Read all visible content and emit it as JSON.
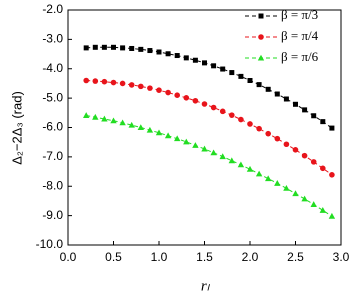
{
  "chart_data": {
    "type": "line",
    "x_label": "rₗ",
    "y_label": "Δ₂−2Δ₃ (rad)",
    "x": [
      0.2,
      0.3,
      0.4,
      0.5,
      0.6,
      0.7,
      0.8,
      0.9,
      1.0,
      1.1,
      1.2,
      1.3,
      1.4,
      1.5,
      1.6,
      1.7,
      1.8,
      1.9,
      2.0,
      2.1,
      2.2,
      2.3,
      2.4,
      2.5,
      2.6,
      2.7,
      2.8,
      2.9
    ],
    "series": [
      {
        "name": "β = π/3",
        "color": "#000000",
        "marker": "square",
        "values": [
          -3.29,
          -3.27,
          -3.27,
          -3.27,
          -3.29,
          -3.31,
          -3.34,
          -3.38,
          -3.43,
          -3.49,
          -3.55,
          -3.63,
          -3.71,
          -3.8,
          -3.9,
          -4.01,
          -4.13,
          -4.26,
          -4.4,
          -4.54,
          -4.7,
          -4.86,
          -5.03,
          -5.21,
          -5.4,
          -5.6,
          -5.8,
          -6.02
        ]
      },
      {
        "name": "β = π/4",
        "color": "#e8141b",
        "marker": "circle",
        "values": [
          -4.4,
          -4.42,
          -4.44,
          -4.47,
          -4.5,
          -4.55,
          -4.6,
          -4.66,
          -4.73,
          -4.81,
          -4.9,
          -4.99,
          -5.09,
          -5.2,
          -5.32,
          -5.45,
          -5.58,
          -5.73,
          -5.88,
          -6.04,
          -6.21,
          -6.38,
          -6.57,
          -6.76,
          -6.96,
          -7.17,
          -7.39,
          -7.61
        ]
      },
      {
        "name": "β = π/6",
        "color": "#22dd22",
        "marker": "triangle",
        "values": [
          -5.59,
          -5.65,
          -5.71,
          -5.77,
          -5.84,
          -5.92,
          -6.0,
          -6.09,
          -6.18,
          -6.28,
          -6.38,
          -6.49,
          -6.61,
          -6.73,
          -6.86,
          -6.99,
          -7.13,
          -7.27,
          -7.42,
          -7.58,
          -7.74,
          -7.9,
          -8.07,
          -8.25,
          -8.43,
          -8.62,
          -8.82,
          -9.02
        ]
      }
    ],
    "xlim": [
      0,
      3
    ],
    "xticks": [
      {
        "value": 0,
        "label": "0.0"
      },
      {
        "value": 0.5,
        "label": "0.5"
      },
      {
        "value": 1,
        "label": "1.0"
      },
      {
        "value": 1.5,
        "label": "1.5"
      },
      {
        "value": 2,
        "label": "2.0"
      },
      {
        "value": 2.5,
        "label": "2.5"
      },
      {
        "value": 3,
        "label": "3.0"
      }
    ],
    "ylim": [
      -10,
      -2
    ],
    "yticks": [
      {
        "value": -10,
        "label": "-10.0"
      },
      {
        "value": -9,
        "label": "-9.0"
      },
      {
        "value": -8,
        "label": "-8.0"
      },
      {
        "value": -7,
        "label": "-7.0"
      },
      {
        "value": -6,
        "label": "-6.0"
      },
      {
        "value": -5,
        "label": "-5.0"
      },
      {
        "value": -4,
        "label": "-4.0"
      },
      {
        "value": -3,
        "label": "-3.0"
      },
      {
        "value": -2,
        "label": "-2.0"
      }
    ],
    "legend": "top-right"
  }
}
